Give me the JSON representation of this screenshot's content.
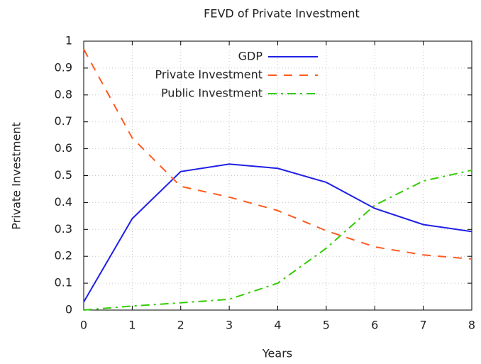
{
  "chart_data": {
    "type": "line",
    "title": "FEVD of Private Investment",
    "x_label": "Years",
    "y_label": "Private Investment",
    "x": [
      0,
      1,
      2,
      3,
      4,
      5,
      6,
      7,
      8
    ],
    "series": [
      {
        "name": "GDP",
        "color": "#1f1fe6",
        "line_style": "solid",
        "values": [
          0.03,
          0.34,
          0.515,
          0.543,
          0.527,
          0.475,
          0.378,
          0.318,
          0.292
        ]
      },
      {
        "name": "Private Investment",
        "color": "#ff5a1f",
        "line_style": "dashed",
        "values": [
          0.97,
          0.64,
          0.46,
          0.42,
          0.37,
          0.295,
          0.235,
          0.205,
          0.19
        ]
      },
      {
        "name": "Public Investment",
        "color": "#33cc00",
        "line_style": "dashdot",
        "values": [
          0.0,
          0.015,
          0.027,
          0.04,
          0.1,
          0.23,
          0.39,
          0.48,
          0.52
        ]
      }
    ],
    "xlim": [
      0,
      8
    ],
    "xticks": [
      0,
      1,
      2,
      3,
      4,
      5,
      6,
      7,
      8
    ],
    "ylim": [
      0,
      1
    ],
    "yticks": [
      0,
      0.1,
      0.2,
      0.3,
      0.4,
      0.5,
      0.6,
      0.7,
      0.8,
      0.9,
      1
    ],
    "grid": true,
    "legend": "top"
  }
}
